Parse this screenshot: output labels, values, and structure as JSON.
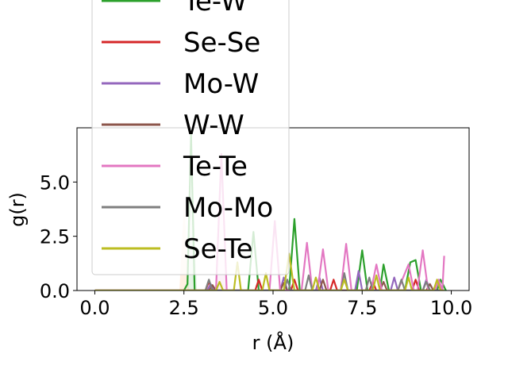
{
  "chart_data": {
    "type": "line",
    "title": "",
    "xlabel": "r (Å)",
    "ylabel": "g(r)",
    "xlim": [
      -0.5,
      10.5
    ],
    "ylim": [
      0,
      7.5
    ],
    "xticks": [
      0.0,
      2.5,
      5.0,
      7.5,
      10.0
    ],
    "xtick_labels": [
      "0.0",
      "2.5",
      "5.0",
      "7.5",
      "10.0"
    ],
    "yticks": [
      0.0,
      2.5,
      5.0
    ],
    "ytick_labels": [
      "0.0",
      "2.5",
      "5.0"
    ],
    "legend_position": "upper-left, overflowing above plot",
    "grid": false,
    "series": [
      {
        "name": "Te-W",
        "color": "#2ca02c",
        "points": [
          [
            0,
            0
          ],
          [
            2.5,
            0
          ],
          [
            2.6,
            0.3
          ],
          [
            2.7,
            7.2
          ],
          [
            2.8,
            0
          ],
          [
            4.3,
            0
          ],
          [
            4.45,
            2.7
          ],
          [
            4.6,
            0
          ],
          [
            5.45,
            0
          ],
          [
            5.6,
            3.3
          ],
          [
            5.75,
            0
          ],
          [
            7.35,
            0
          ],
          [
            7.5,
            1.85
          ],
          [
            7.65,
            0
          ],
          [
            8.0,
            0
          ],
          [
            8.1,
            1.2
          ],
          [
            8.25,
            0
          ],
          [
            8.7,
            0
          ],
          [
            8.85,
            1.3
          ],
          [
            9.0,
            1.4
          ],
          [
            9.15,
            0
          ],
          [
            9.6,
            0
          ],
          [
            9.7,
            0.5
          ],
          [
            9.85,
            0
          ]
        ]
      },
      {
        "name": "Se-Se",
        "color": "#d62728",
        "points": [
          [
            0,
            0
          ],
          [
            3.1,
            0
          ],
          [
            3.2,
            0.4
          ],
          [
            3.3,
            0
          ],
          [
            4.5,
            0
          ],
          [
            4.6,
            0.5
          ],
          [
            4.7,
            0
          ],
          [
            5.5,
            0
          ],
          [
            5.6,
            0.5
          ],
          [
            5.7,
            0
          ],
          [
            6.6,
            0
          ],
          [
            6.7,
            0.5
          ],
          [
            6.8,
            0
          ],
          [
            7.7,
            0
          ],
          [
            7.8,
            0.4
          ],
          [
            7.9,
            0
          ],
          [
            8.9,
            0
          ],
          [
            9.0,
            0.5
          ],
          [
            9.1,
            0
          ],
          [
            9.8,
            0
          ]
        ]
      },
      {
        "name": "Mo-W",
        "color": "#9467bd",
        "points": [
          [
            0,
            0
          ],
          [
            3.15,
            0
          ],
          [
            3.25,
            0.3
          ],
          [
            3.35,
            0
          ],
          [
            5.2,
            0
          ],
          [
            5.3,
            0.6
          ],
          [
            5.4,
            0
          ],
          [
            6.2,
            0
          ],
          [
            6.3,
            0.6
          ],
          [
            6.4,
            0
          ],
          [
            7.3,
            0
          ],
          [
            7.4,
            0.9
          ],
          [
            7.5,
            0
          ],
          [
            8.3,
            0
          ],
          [
            8.4,
            0.6
          ],
          [
            8.5,
            0
          ],
          [
            9.2,
            0
          ],
          [
            9.3,
            0.5
          ],
          [
            9.4,
            0
          ],
          [
            9.8,
            0
          ]
        ]
      },
      {
        "name": "W-W",
        "color": "#8c564b",
        "points": [
          [
            0,
            0
          ],
          [
            3.2,
            0
          ],
          [
            3.3,
            0.25
          ],
          [
            3.4,
            0
          ],
          [
            5.2,
            0
          ],
          [
            5.3,
            0.35
          ],
          [
            5.4,
            0
          ],
          [
            6.3,
            0
          ],
          [
            6.4,
            0.5
          ],
          [
            6.5,
            0
          ],
          [
            8.0,
            0
          ],
          [
            8.1,
            0.4
          ],
          [
            8.2,
            0
          ],
          [
            9.3,
            0
          ],
          [
            9.4,
            0.3
          ],
          [
            9.5,
            0
          ],
          [
            9.8,
            0
          ]
        ]
      },
      {
        "name": "Te-Te",
        "color": "#e377c2",
        "points": [
          [
            0,
            0
          ],
          [
            3.4,
            0
          ],
          [
            3.55,
            6.3
          ],
          [
            3.7,
            0
          ],
          [
            4.9,
            0
          ],
          [
            5.05,
            3.2
          ],
          [
            5.2,
            0
          ],
          [
            5.8,
            0
          ],
          [
            5.95,
            2.2
          ],
          [
            6.1,
            0
          ],
          [
            6.25,
            0
          ],
          [
            6.4,
            1.9
          ],
          [
            6.55,
            0
          ],
          [
            6.9,
            0
          ],
          [
            7.05,
            2.15
          ],
          [
            7.2,
            0
          ],
          [
            7.75,
            0
          ],
          [
            7.9,
            1.2
          ],
          [
            8.05,
            0
          ],
          [
            8.5,
            0
          ],
          [
            8.65,
            0.6
          ],
          [
            8.8,
            1.2
          ],
          [
            8.95,
            0
          ],
          [
            9.05,
            0
          ],
          [
            9.2,
            1.85
          ],
          [
            9.35,
            0
          ],
          [
            9.55,
            0
          ],
          [
            9.65,
            0.5
          ],
          [
            9.75,
            0
          ],
          [
            9.8,
            1.6
          ]
        ]
      },
      {
        "name": "Mo-Mo",
        "color": "#7f7f7f",
        "points": [
          [
            0,
            0
          ],
          [
            3.1,
            0
          ],
          [
            3.2,
            0.5
          ],
          [
            3.3,
            0
          ],
          [
            5.3,
            0
          ],
          [
            5.4,
            0.5
          ],
          [
            5.5,
            0
          ],
          [
            5.9,
            0
          ],
          [
            6.0,
            0.7
          ],
          [
            6.1,
            0
          ],
          [
            6.9,
            0
          ],
          [
            7.0,
            0.8
          ],
          [
            7.1,
            0
          ],
          [
            7.6,
            0
          ],
          [
            7.7,
            0.6
          ],
          [
            7.8,
            0
          ],
          [
            8.5,
            0
          ],
          [
            8.6,
            0.5
          ],
          [
            8.7,
            0
          ],
          [
            9.2,
            0
          ],
          [
            9.3,
            0.4
          ],
          [
            9.4,
            0
          ],
          [
            9.8,
            0
          ]
        ]
      },
      {
        "name": "Se-Te",
        "color": "#bcbd22",
        "points": [
          [
            0,
            0
          ],
          [
            3.4,
            0
          ],
          [
            3.5,
            0.4
          ],
          [
            3.6,
            0
          ],
          [
            3.9,
            0
          ],
          [
            4.0,
            1.3
          ],
          [
            4.1,
            0
          ],
          [
            4.7,
            0
          ],
          [
            4.8,
            0.8
          ],
          [
            4.9,
            0
          ],
          [
            5.3,
            0
          ],
          [
            5.45,
            1.7
          ],
          [
            5.6,
            0
          ],
          [
            6.1,
            0
          ],
          [
            6.2,
            0.6
          ],
          [
            6.3,
            0
          ],
          [
            6.9,
            0
          ],
          [
            7.0,
            0.5
          ],
          [
            7.1,
            0
          ],
          [
            7.8,
            0
          ],
          [
            7.9,
            0.7
          ],
          [
            8.0,
            0
          ],
          [
            8.7,
            0
          ],
          [
            8.8,
            0.6
          ],
          [
            8.9,
            0
          ],
          [
            9.5,
            0
          ],
          [
            9.6,
            0.5
          ],
          [
            9.7,
            0
          ],
          [
            9.8,
            0
          ]
        ]
      }
    ]
  }
}
